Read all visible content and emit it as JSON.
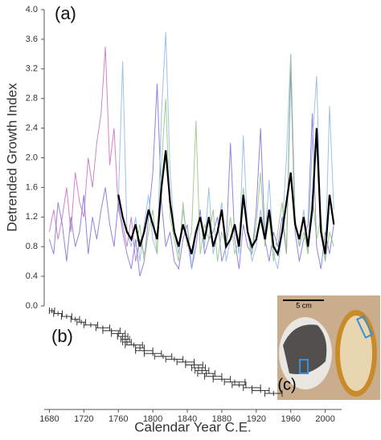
{
  "chart_data": [
    {
      "type": "line",
      "ylabel": "Detrended Growth Index",
      "xlabel": "Calendar Year C.E.",
      "panel_label": "(a)",
      "xlim": [
        1674,
        2019
      ],
      "xticks": [
        1680,
        1720,
        1760,
        1800,
        1840,
        1880,
        1920,
        1960,
        2000
      ],
      "ylim": [
        0,
        4
      ],
      "yticks": [
        {
          "value": 0,
          "label": "0.0"
        },
        0.4,
        0.8,
        1.2,
        1.6,
        {
          "value": 2,
          "label": "2.0"
        },
        2.4,
        2.8,
        3.2,
        3.6,
        {
          "value": 4,
          "label": "4.0"
        }
      ],
      "x": [
        1680,
        1685,
        1690,
        1695,
        1700,
        1705,
        1710,
        1715,
        1720,
        1725,
        1730,
        1735,
        1740,
        1745,
        1750,
        1755,
        1760,
        1765,
        1770,
        1775,
        1780,
        1785,
        1790,
        1795,
        1800,
        1805,
        1810,
        1815,
        1820,
        1825,
        1830,
        1835,
        1840,
        1845,
        1850,
        1855,
        1860,
        1865,
        1870,
        1875,
        1880,
        1885,
        1890,
        1895,
        1900,
        1905,
        1910,
        1915,
        1920,
        1925,
        1930,
        1935,
        1940,
        1945,
        1950,
        1955,
        1960,
        1965,
        1970,
        1975,
        1980,
        1985,
        1990,
        1995,
        2000,
        2005,
        2010
      ],
      "series": [
        {
          "color": "#c96dc0",
          "values": [
            1.0,
            1.3,
            0.9,
            1.2,
            1.6,
            1.0,
            1.8,
            1.4,
            1.2,
            2.0,
            1.6,
            2.2,
            2.6,
            3.5,
            1.9,
            2.4,
            1.3,
            1.1,
            0.8,
            1.2,
            0.6,
            0.9,
            0.7,
            null,
            null,
            null,
            null,
            null,
            null,
            null,
            null,
            null,
            null,
            null,
            null,
            null,
            null,
            null,
            null,
            null,
            null,
            null,
            null,
            null,
            null,
            null,
            null,
            null,
            null,
            null,
            null,
            null,
            null,
            null,
            null,
            null,
            null,
            null,
            null,
            null,
            null,
            null,
            null,
            null,
            null,
            null,
            null
          ]
        },
        {
          "color": "#7b70d8",
          "values": [
            0.9,
            0.7,
            1.4,
            1.1,
            0.6,
            1.2,
            0.8,
            1.0,
            1.5,
            0.7,
            1.2,
            0.9,
            1.3,
            1.6,
            1.1,
            0.8,
            1.4,
            1.0,
            0.7,
            0.5,
            0.9,
            0.4,
            0.6,
            1.2,
            1.8,
            3.0,
            1.4,
            0.8,
            1.0,
            0.6,
            0.5,
            0.9,
            1.1,
            0.5,
            0.8,
            1.3,
            0.7,
            0.9,
            1.0,
            1.2,
            0.6,
            0.8,
            2.2,
            0.9,
            0.5,
            1.1,
            0.8,
            0.7,
            1.3,
            2.4,
            0.9,
            0.6,
            1.0,
            0.8,
            1.2,
            0.7,
            3.2,
            1.0,
            0.6,
            0.9,
            1.1,
            2.6,
            0.8,
            0.5,
            1.0,
            0.7,
            1.1
          ]
        },
        {
          "color": "#8cb6e8",
          "values": [
            null,
            null,
            null,
            null,
            null,
            null,
            null,
            null,
            null,
            null,
            null,
            null,
            null,
            null,
            null,
            null,
            1.4,
            3.3,
            1.0,
            0.8,
            1.2,
            0.6,
            1.1,
            1.5,
            0.9,
            0.7,
            2.6,
            3.7,
            1.8,
            1.0,
            0.7,
            1.3,
            0.9,
            0.5,
            1.0,
            1.2,
            0.8,
            1.6,
            0.7,
            1.0,
            1.4,
            0.6,
            0.9,
            1.1,
            0.7,
            2.3,
            1.0,
            0.6,
            0.8,
            1.3,
            0.9,
            1.7,
            0.7,
            0.5,
            1.0,
            2.0,
            3.4,
            1.1,
            0.8,
            1.3,
            0.7,
            2.2,
            3.1,
            1.0,
            0.6,
            2.7,
            1.3
          ]
        },
        {
          "color": "#92c47c",
          "values": [
            null,
            null,
            null,
            null,
            null,
            null,
            null,
            null,
            null,
            null,
            null,
            null,
            null,
            null,
            null,
            null,
            null,
            null,
            null,
            null,
            0.8,
            1.1,
            0.6,
            1.0,
            1.3,
            0.7,
            1.9,
            2.8,
            1.2,
            0.9,
            0.6,
            1.4,
            0.8,
            1.0,
            2.5,
            0.7,
            1.1,
            0.9,
            1.3,
            0.6,
            1.0,
            0.8,
            1.2,
            0.7,
            0.9,
            1.6,
            1.0,
            0.7,
            1.1,
            1.8,
            0.8,
            1.2,
            0.6,
            1.0,
            1.4,
            0.7,
            3.4,
            1.2,
            0.8,
            1.0,
            0.7,
            1.5,
            0.9,
            1.2,
            0.6,
            1.0,
            0.8
          ]
        },
        {
          "color": "#000000",
          "width": 2.2,
          "values": [
            null,
            null,
            null,
            null,
            null,
            null,
            null,
            null,
            null,
            null,
            null,
            null,
            null,
            null,
            null,
            null,
            1.5,
            1.2,
            1.0,
            0.9,
            1.1,
            0.8,
            1.0,
            1.3,
            1.1,
            0.9,
            1.6,
            2.1,
            1.4,
            1.0,
            0.8,
            1.1,
            0.9,
            0.7,
            1.0,
            1.2,
            0.9,
            1.2,
            0.8,
            1.0,
            1.3,
            0.8,
            0.9,
            1.1,
            0.8,
            1.5,
            1.0,
            0.8,
            0.9,
            1.2,
            0.9,
            1.3,
            0.8,
            0.7,
            1.0,
            1.4,
            1.8,
            1.1,
            0.9,
            1.2,
            0.8,
            1.3,
            2.4,
            1.0,
            0.7,
            1.5,
            1.1
          ]
        }
      ]
    },
    {
      "type": "errorbar",
      "panel_label": "(b)",
      "x": [
        1683,
        1690,
        1700,
        1710,
        1717,
        1728,
        1742,
        1752,
        1760,
        1765,
        1768,
        1770,
        1778,
        1785,
        1790,
        1800,
        1812,
        1825,
        1838,
        1848,
        1853,
        1857,
        1862,
        1870,
        1880,
        1895,
        1900,
        1915,
        1925,
        1940
      ],
      "xerr": [
        3,
        5,
        6,
        5,
        5,
        8,
        8,
        10,
        8,
        6,
        5,
        5,
        10,
        5,
        10,
        10,
        10,
        10,
        10,
        10,
        8,
        8,
        10,
        10,
        10,
        12,
        8,
        10,
        10,
        10
      ]
    }
  ],
  "photo": {
    "scale_label": "5 cm",
    "label": "(c)"
  }
}
